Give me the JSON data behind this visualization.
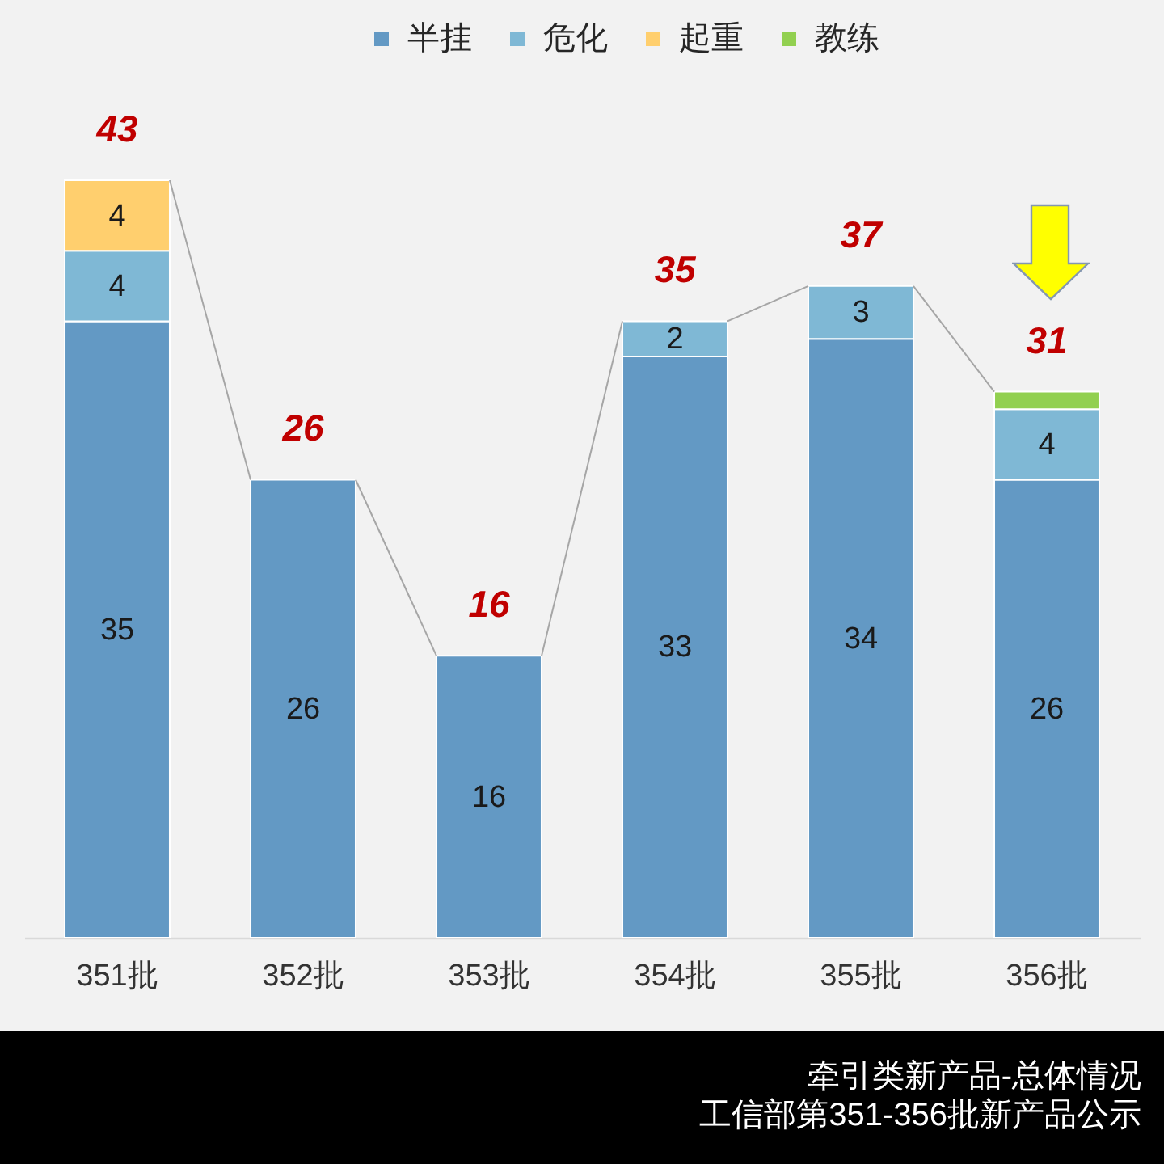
{
  "chart_data": {
    "type": "bar",
    "title": "牵引类新产品-总体情况",
    "subtitle": "工信部第351-356批新产品公示",
    "categories": [
      "351批",
      "352批",
      "353批",
      "354批",
      "355批",
      "356批"
    ],
    "stacked": true,
    "legend": "top",
    "series": [
      {
        "name": "半挂",
        "color": "#6399c4",
        "values": [
          35,
          26,
          16,
          33,
          34,
          26
        ],
        "value_labels": [
          "35",
          "26",
          "16",
          "33",
          "34",
          "26"
        ]
      },
      {
        "name": "危化",
        "color": "#7fb8d5",
        "values": [
          4,
          null,
          null,
          2,
          3,
          4
        ],
        "value_labels": [
          "4",
          null,
          null,
          "2",
          "3",
          "4"
        ]
      },
      {
        "name": "起重",
        "color": "#ffcf6e",
        "values": [
          4,
          null,
          null,
          null,
          null,
          null
        ],
        "value_labels": [
          "4",
          null,
          null,
          null,
          null,
          null
        ]
      },
      {
        "name": "教练",
        "color": "#92d050",
        "values": [
          null,
          null,
          null,
          null,
          null,
          1
        ],
        "value_labels": [
          null,
          null,
          null,
          null,
          null,
          null
        ]
      }
    ],
    "totals": [
      "43",
      "26",
      "16",
      "35",
      "37",
      "31"
    ]
  }
}
